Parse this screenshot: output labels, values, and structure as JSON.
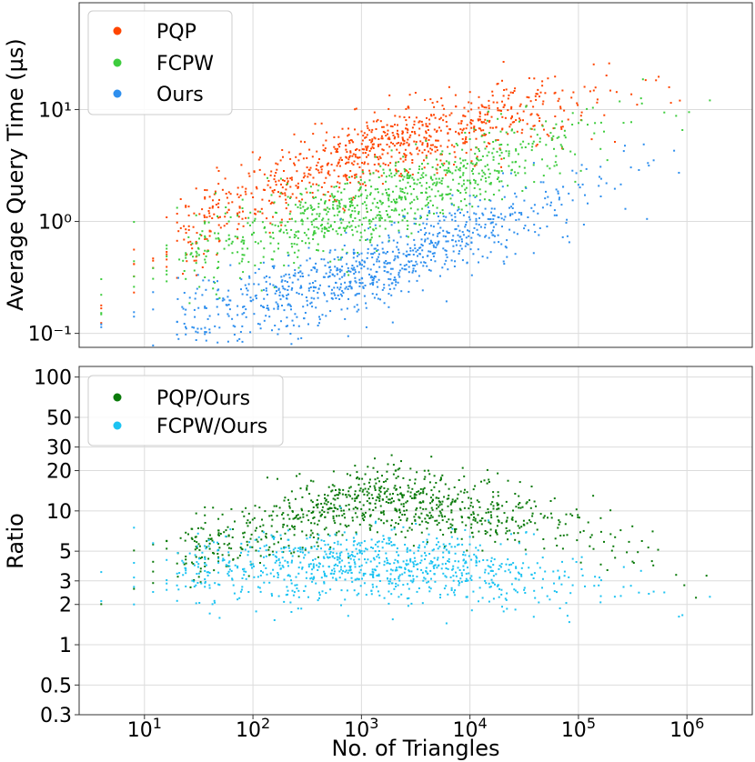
{
  "chart_data": [
    {
      "type": "scatter",
      "panel": "top",
      "xscale": "log",
      "yscale": "log",
      "xlim": [
        2.5,
        4000000
      ],
      "ylim": [
        0.075,
        90
      ],
      "ylabel": "Average Query Time (µs)",
      "xlabel": "",
      "yticks": [
        {
          "value": 0.1,
          "label": "10⁻¹"
        },
        {
          "value": 1,
          "label": "10⁰"
        },
        {
          "value": 10,
          "label": "10¹"
        }
      ],
      "legend": {
        "position": "top-left"
      },
      "series": [
        {
          "name": "PQP",
          "color": "#ff4500",
          "trend": [
            [
              4,
              0.27
            ],
            [
              100,
              1.8
            ],
            [
              1000,
              4.2
            ],
            [
              10000,
              7
            ],
            [
              100000,
              12
            ],
            [
              1000000,
              19
            ],
            [
              3000000,
              25
            ]
          ]
        },
        {
          "name": "FCPW",
          "color": "#3ecc3e",
          "trend": [
            [
              4,
              0.25
            ],
            [
              100,
              0.75
            ],
            [
              1000,
              1.3
            ],
            [
              10000,
              2.6
            ],
            [
              100000,
              6
            ],
            [
              1000000,
              11
            ],
            [
              3000000,
              14
            ]
          ]
        },
        {
          "name": "Ours",
          "color": "#2e8fee",
          "trend": [
            [
              4,
              0.085
            ],
            [
              100,
              0.18
            ],
            [
              1000,
              0.32
            ],
            [
              10000,
              0.8
            ],
            [
              100000,
              1.8
            ],
            [
              1000000,
              5
            ],
            [
              3000000,
              8
            ]
          ]
        }
      ]
    },
    {
      "type": "scatter",
      "panel": "bottom",
      "xscale": "log",
      "yscale": "log",
      "xlim": [
        2.5,
        4000000
      ],
      "ylim": [
        0.3,
        120
      ],
      "ylabel": "Ratio",
      "xlabel": "No. of Triangles",
      "xticks": [
        {
          "value": 10,
          "base": "10",
          "exp": "1"
        },
        {
          "value": 100,
          "base": "10",
          "exp": "2"
        },
        {
          "value": 1000,
          "base": "10",
          "exp": "3"
        },
        {
          "value": 10000,
          "base": "10",
          "exp": "4"
        },
        {
          "value": 100000,
          "base": "10",
          "exp": "5"
        },
        {
          "value": 1000000,
          "base": "10",
          "exp": "6"
        }
      ],
      "yticks": [
        {
          "value": 0.3,
          "label": "0.3"
        },
        {
          "value": 0.5,
          "label": "0.5"
        },
        {
          "value": 1,
          "label": "1"
        },
        {
          "value": 2,
          "label": "2"
        },
        {
          "value": 3,
          "label": "3"
        },
        {
          "value": 5,
          "label": "5"
        },
        {
          "value": 10,
          "label": "10"
        },
        {
          "value": 20,
          "label": "20"
        },
        {
          "value": 30,
          "label": "30"
        },
        {
          "value": 50,
          "label": "50"
        },
        {
          "value": 100,
          "label": "100"
        }
      ],
      "legend": {
        "position": "top-left"
      },
      "series": [
        {
          "name": "PQP/Ours",
          "color": "#0a7a0a",
          "trend": [
            [
              4,
              3
            ],
            [
              100,
              7
            ],
            [
              1000,
              13
            ],
            [
              10000,
              10
            ],
            [
              100000,
              7.5
            ],
            [
              1000000,
              3.5
            ],
            [
              3000000,
              2.8
            ]
          ]
        },
        {
          "name": "FCPW/Ours",
          "color": "#1cc3f2",
          "trend": [
            [
              4,
              3
            ],
            [
              100,
              3.7
            ],
            [
              1000,
              4
            ],
            [
              10000,
              3.6
            ],
            [
              100000,
              3
            ],
            [
              1000000,
              2.4
            ],
            [
              3000000,
              2.2
            ]
          ]
        }
      ]
    }
  ]
}
